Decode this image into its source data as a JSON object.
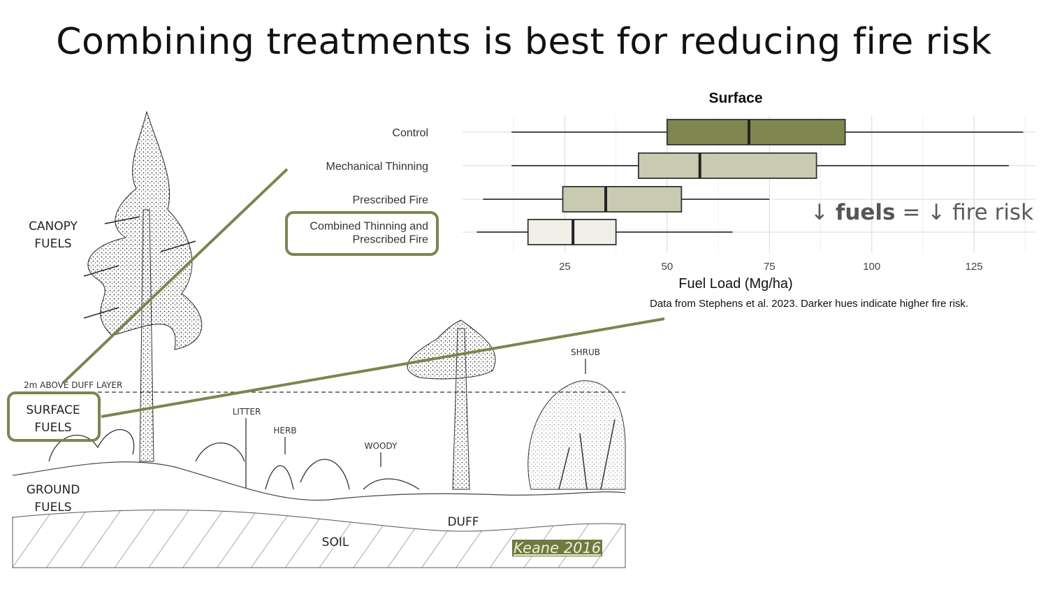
{
  "slide": {
    "title": "Combining treatments is best for reducing fire risk"
  },
  "illustration": {
    "labels": {
      "canopy_line1": "CANOPY",
      "canopy_line2": "FUELS",
      "surface_line1": "SURFACE",
      "surface_line2": "FUELS",
      "ground_line1": "GROUND",
      "ground_line2": "FUELS",
      "duff_layer": "2m ABOVE DUFF LAYER",
      "litter": "LITTER",
      "herb": "HERB",
      "woody": "WOODY",
      "shrub": "SHRUB",
      "duff": "DUFF",
      "soil": "SOIL"
    },
    "credit": "Keane 2016",
    "accent_color": "#7d8450"
  },
  "annotation": {
    "arrow": "↓",
    "fuels_word": "fuels",
    "equals": "=",
    "fire_risk": "fire risk"
  },
  "caption": "Data from Stephens et al. 2023. Darker hues indicate higher fire risk.",
  "chart_data": {
    "type": "boxplot",
    "title": "Surface",
    "xlabel": "Fuel Load (Mg/ha)",
    "ylabel": "",
    "xlim": [
      0,
      140
    ],
    "xticks": [
      25,
      50,
      75,
      100,
      125
    ],
    "grid": true,
    "series": [
      {
        "category": "Control",
        "min": 12,
        "q1": 50,
        "median": 70,
        "q3": 93.5,
        "max": 137,
        "color": "#808650"
      },
      {
        "category": "Mechanical Thinning",
        "min": 12,
        "q1": 43,
        "median": 58,
        "q3": 86.5,
        "max": 133.5,
        "color": "#c9cbb1"
      },
      {
        "category": "Prescribed Fire",
        "min": 5,
        "q1": 24.5,
        "median": 35,
        "q3": 53.5,
        "max": 75,
        "color": "#c9cbb1"
      },
      {
        "category": "Combined Thinning and Prescribed Fire",
        "lines": [
          "Combined Thinning and",
          "Prescribed Fire"
        ],
        "min": 3.5,
        "q1": 16,
        "median": 27,
        "q3": 37.5,
        "max": 66,
        "color": "#f0f0e9",
        "highlighted": true
      }
    ]
  }
}
